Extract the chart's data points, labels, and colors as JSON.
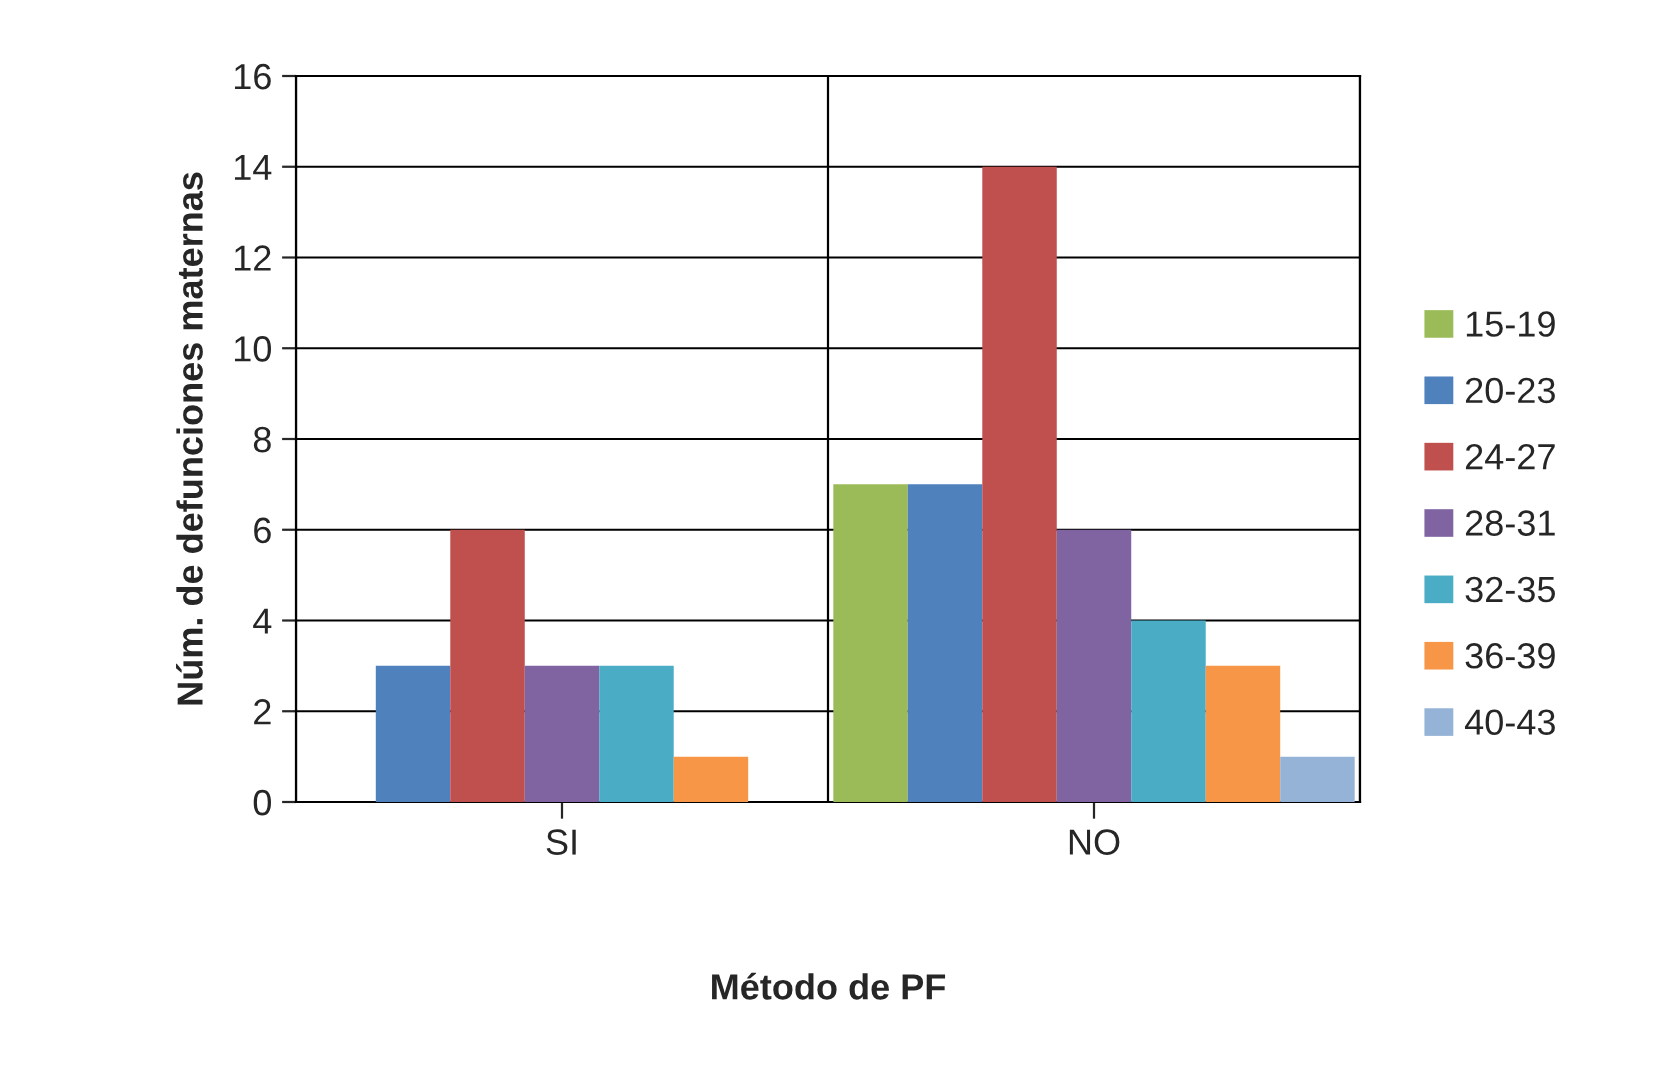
{
  "chart_data": {
    "type": "bar",
    "xlabel": "Método de PF",
    "ylabel": "Núm. de defunciones maternas",
    "categories": [
      "SI",
      "NO"
    ],
    "series": [
      {
        "name": "15-19",
        "color": "#9bbb59",
        "values": [
          0,
          7
        ]
      },
      {
        "name": "20-23",
        "color": "#4f81bd",
        "values": [
          3,
          7
        ]
      },
      {
        "name": "24-27",
        "color": "#c0504d",
        "values": [
          6,
          14
        ]
      },
      {
        "name": "28-31",
        "color": "#8064a2",
        "values": [
          3,
          6
        ]
      },
      {
        "name": "32-35",
        "color": "#4bacc6",
        "values": [
          3,
          4
        ]
      },
      {
        "name": "36-39",
        "color": "#f79646",
        "values": [
          1,
          3
        ]
      },
      {
        "name": "40-43",
        "color": "#95b3d7",
        "values": [
          0,
          1
        ]
      }
    ],
    "ylim": [
      0,
      16
    ],
    "yticks": [
      0,
      2,
      4,
      6,
      8,
      10,
      12,
      14,
      16
    ],
    "grid": "y",
    "legend": "right"
  }
}
